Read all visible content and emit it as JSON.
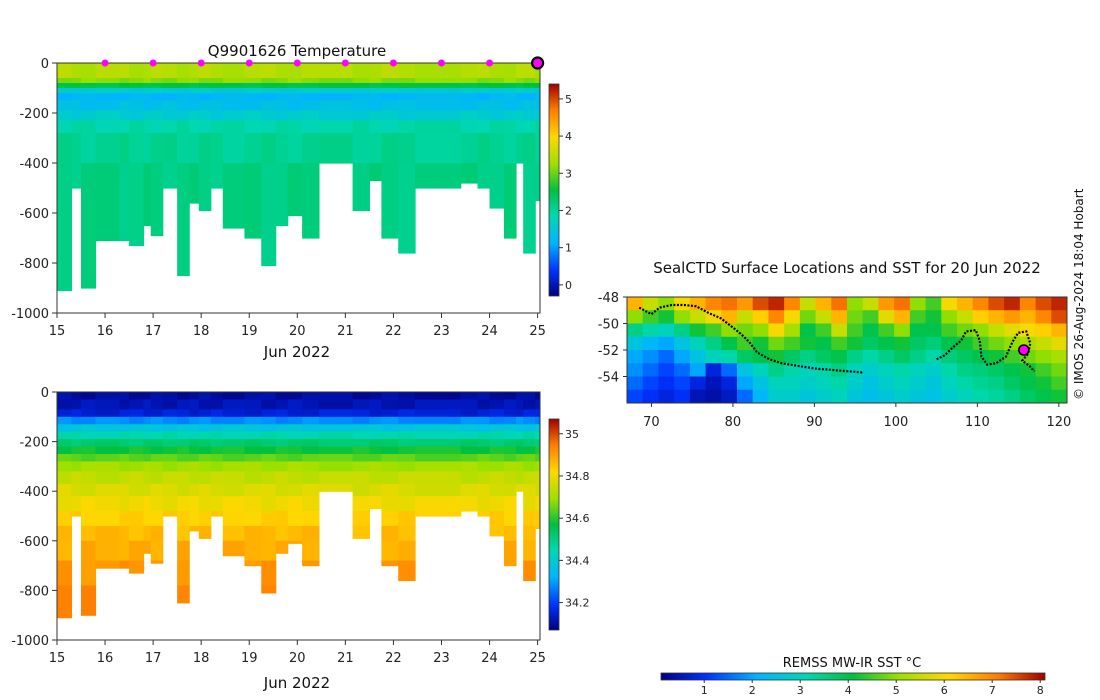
{
  "chart_data": [
    {
      "type": "heatmap",
      "title": "Q9901626  Temperature",
      "variable": "temperature",
      "xlabel": "Jun 2022",
      "x_ticks": [
        15,
        16,
        17,
        18,
        19,
        20,
        21,
        22,
        23,
        24,
        25
      ],
      "xlim": [
        15,
        25.05
      ],
      "ylim": [
        -1000,
        0
      ],
      "y_ticks": [
        0,
        -200,
        -400,
        -600,
        -800,
        -1000
      ],
      "colorbar": {
        "ticks": [
          0,
          1,
          2,
          3,
          4,
          5
        ],
        "range": [
          -0.3,
          5.4
        ]
      },
      "surface_markers_x": [
        16,
        17,
        18,
        19,
        20,
        21,
        22,
        23,
        24
      ],
      "current_marker_x": 25,
      "profiles": [
        {
          "x": 15.0,
          "max_depth": 910
        },
        {
          "x": 15.3,
          "max_depth": 500
        },
        {
          "x": 15.5,
          "max_depth": 900
        },
        {
          "x": 15.8,
          "max_depth": 710
        },
        {
          "x": 16.3,
          "max_depth": 710
        },
        {
          "x": 16.5,
          "max_depth": 730
        },
        {
          "x": 16.8,
          "max_depth": 650
        },
        {
          "x": 16.95,
          "max_depth": 690
        },
        {
          "x": 17.2,
          "max_depth": 500
        },
        {
          "x": 17.5,
          "max_depth": 850
        },
        {
          "x": 17.75,
          "max_depth": 560
        },
        {
          "x": 17.95,
          "max_depth": 590
        },
        {
          "x": 18.2,
          "max_depth": 500
        },
        {
          "x": 18.45,
          "max_depth": 660
        },
        {
          "x": 18.9,
          "max_depth": 700
        },
        {
          "x": 19.25,
          "max_depth": 810
        },
        {
          "x": 19.55,
          "max_depth": 650
        },
        {
          "x": 19.8,
          "max_depth": 610
        },
        {
          "x": 20.1,
          "max_depth": 700
        },
        {
          "x": 20.45,
          "max_depth": 400
        },
        {
          "x": 21.15,
          "max_depth": 590
        },
        {
          "x": 21.5,
          "max_depth": 470
        },
        {
          "x": 21.75,
          "max_depth": 700
        },
        {
          "x": 22.1,
          "max_depth": 760
        },
        {
          "x": 22.45,
          "max_depth": 500
        },
        {
          "x": 23.4,
          "max_depth": 480
        },
        {
          "x": 23.75,
          "max_depth": 500
        },
        {
          "x": 24.0,
          "max_depth": 580
        },
        {
          "x": 24.3,
          "max_depth": 700
        },
        {
          "x": 24.55,
          "max_depth": 400
        },
        {
          "x": 24.7,
          "max_depth": 760
        },
        {
          "x": 24.95,
          "max_depth": 550
        }
      ],
      "depth_profile": [
        {
          "to_depth": 60,
          "value": 3.4
        },
        {
          "to_depth": 80,
          "value": 3.15
        },
        {
          "to_depth": 100,
          "value": 2.5
        },
        {
          "to_depth": 120,
          "value": 1.6
        },
        {
          "to_depth": 150,
          "value": 1.2
        },
        {
          "to_depth": 190,
          "value": 1.35
        },
        {
          "to_depth": 230,
          "value": 1.6
        },
        {
          "to_depth": 280,
          "value": 1.9
        },
        {
          "to_depth": 400,
          "value": 2.05
        },
        {
          "to_depth": 1000,
          "value": 2.15
        }
      ]
    },
    {
      "type": "heatmap",
      "variable": "salinity",
      "xlabel": "Jun 2022",
      "x_ticks": [
        15,
        16,
        17,
        18,
        19,
        20,
        21,
        22,
        23,
        24,
        25
      ],
      "xlim": [
        15,
        25.05
      ],
      "ylim": [
        -1000,
        0
      ],
      "y_ticks": [
        0,
        -200,
        -400,
        -600,
        -800,
        -1000
      ],
      "colorbar": {
        "ticks": [
          34.2,
          34.4,
          34.6,
          34.8,
          35
        ],
        "ticklabels": [
          "34.2",
          "34.4",
          "34.6",
          "34.8",
          "35"
        ],
        "range": [
          34.07,
          35.07
        ]
      },
      "profiles": [
        {
          "x": 15.0,
          "max_depth": 910
        },
        {
          "x": 15.3,
          "max_depth": 500
        },
        {
          "x": 15.5,
          "max_depth": 900
        },
        {
          "x": 15.8,
          "max_depth": 710
        },
        {
          "x": 16.3,
          "max_depth": 710
        },
        {
          "x": 16.5,
          "max_depth": 730
        },
        {
          "x": 16.8,
          "max_depth": 650
        },
        {
          "x": 16.95,
          "max_depth": 690
        },
        {
          "x": 17.2,
          "max_depth": 500
        },
        {
          "x": 17.5,
          "max_depth": 850
        },
        {
          "x": 17.75,
          "max_depth": 560
        },
        {
          "x": 17.95,
          "max_depth": 590
        },
        {
          "x": 18.2,
          "max_depth": 500
        },
        {
          "x": 18.45,
          "max_depth": 660
        },
        {
          "x": 18.9,
          "max_depth": 700
        },
        {
          "x": 19.25,
          "max_depth": 810
        },
        {
          "x": 19.55,
          "max_depth": 650
        },
        {
          "x": 19.8,
          "max_depth": 610
        },
        {
          "x": 20.1,
          "max_depth": 700
        },
        {
          "x": 20.45,
          "max_depth": 400
        },
        {
          "x": 21.15,
          "max_depth": 590
        },
        {
          "x": 21.5,
          "max_depth": 470
        },
        {
          "x": 21.75,
          "max_depth": 700
        },
        {
          "x": 22.1,
          "max_depth": 760
        },
        {
          "x": 22.45,
          "max_depth": 500
        },
        {
          "x": 23.4,
          "max_depth": 480
        },
        {
          "x": 23.75,
          "max_depth": 500
        },
        {
          "x": 24.0,
          "max_depth": 580
        },
        {
          "x": 24.3,
          "max_depth": 700
        },
        {
          "x": 24.55,
          "max_depth": 400
        },
        {
          "x": 24.7,
          "max_depth": 760
        },
        {
          "x": 24.95,
          "max_depth": 550
        }
      ],
      "depth_profile": [
        {
          "to_depth": 30,
          "value": 34.1
        },
        {
          "to_depth": 70,
          "value": 34.12
        },
        {
          "to_depth": 100,
          "value": 34.15
        },
        {
          "to_depth": 130,
          "value": 34.28
        },
        {
          "to_depth": 160,
          "value": 34.38
        },
        {
          "to_depth": 190,
          "value": 34.45
        },
        {
          "to_depth": 220,
          "value": 34.52
        },
        {
          "to_depth": 250,
          "value": 34.58
        },
        {
          "to_depth": 280,
          "value": 34.64
        },
        {
          "to_depth": 320,
          "value": 34.7
        },
        {
          "to_depth": 370,
          "value": 34.74
        },
        {
          "to_depth": 420,
          "value": 34.77
        },
        {
          "to_depth": 480,
          "value": 34.8
        },
        {
          "to_depth": 540,
          "value": 34.83
        },
        {
          "to_depth": 600,
          "value": 34.86
        },
        {
          "to_depth": 680,
          "value": 34.88
        },
        {
          "to_depth": 780,
          "value": 34.91
        },
        {
          "to_depth": 1000,
          "value": 34.94
        }
      ]
    },
    {
      "type": "heatmap",
      "title": "SealCTD Surface Locations and SST for 20 Jun 2022",
      "xlim": [
        67,
        121
      ],
      "ylim": [
        -56,
        -48
      ],
      "x_ticks": [
        70,
        80,
        90,
        100,
        110,
        120
      ],
      "y_ticks": [
        -48,
        -50,
        -52,
        -54
      ],
      "colorbar": {
        "label": "REMSS MW-IR SST °C",
        "ticks": [
          1,
          2,
          3,
          4,
          5,
          6,
          7,
          8
        ],
        "range": [
          0.1,
          8.1
        ]
      },
      "track": [
        [
          68.5,
          -48.8
        ],
        [
          70,
          -49.3
        ],
        [
          71,
          -48.8
        ],
        [
          72.5,
          -48.6
        ],
        [
          74,
          -48.6
        ],
        [
          75.5,
          -48.7
        ],
        [
          77,
          -49.2
        ],
        [
          78.5,
          -49.6
        ],
        [
          80,
          -50.3
        ],
        [
          81,
          -50.8
        ],
        [
          82,
          -51.4
        ],
        [
          83,
          -52.2
        ],
        [
          84.5,
          -52.7
        ],
        [
          86,
          -53
        ],
        [
          88,
          -53.2
        ],
        [
          90,
          -53.4
        ],
        [
          92,
          -53.5
        ],
        [
          94,
          -53.6
        ],
        [
          96,
          -53.7
        ]
      ],
      "track2": [
        [
          105,
          -52.7
        ],
        [
          106,
          -52.4
        ],
        [
          107,
          -51.8
        ],
        [
          108,
          -51.3
        ],
        [
          108.6,
          -50.6
        ],
        [
          109.8,
          -50.5
        ],
        [
          110.3,
          -51.3
        ],
        [
          110.5,
          -52.5
        ],
        [
          111.2,
          -53.1
        ],
        [
          112.3,
          -53
        ],
        [
          113.5,
          -52.5
        ],
        [
          114.3,
          -51.4
        ],
        [
          115,
          -50.7
        ],
        [
          116,
          -50.6
        ],
        [
          116.5,
          -51.5
        ],
        [
          116.2,
          -52.3
        ],
        [
          115.5,
          -52.8
        ],
        [
          116.4,
          -53.2
        ],
        [
          117,
          -53.6
        ]
      ],
      "current_location": [
        115.7,
        -52.0
      ],
      "sst_field": [
        [
          6.5,
          5.5,
          5.0,
          6.0,
          6.5,
          7.0,
          7.2,
          6.8,
          7.5,
          7.8,
          7.0,
          5.5,
          6.5,
          7.2,
          5.0,
          5.5,
          6.8,
          7.2,
          5.0,
          4.5,
          6.0,
          6.5,
          7.0,
          7.5,
          7.8,
          7.0,
          7.5,
          7.8
        ],
        [
          5.0,
          4.5,
          4.2,
          5.0,
          5.5,
          6.0,
          6.5,
          5.5,
          6.2,
          7.0,
          6.0,
          4.8,
          5.5,
          6.5,
          4.8,
          4.5,
          5.8,
          6.5,
          4.5,
          4.2,
          5.0,
          5.5,
          6.2,
          6.5,
          6.8,
          6.5,
          7.0,
          7.5
        ],
        [
          3.5,
          3.2,
          3.0,
          3.5,
          4.2,
          4.5,
          5.0,
          4.8,
          5.0,
          6.0,
          5.2,
          4.0,
          4.5,
          5.5,
          4.5,
          4.0,
          4.5,
          5.0,
          4.0,
          4.0,
          4.5,
          4.8,
          5.0,
          5.5,
          5.8,
          6.0,
          6.2,
          6.5
        ],
        [
          2.5,
          2.2,
          2.0,
          2.5,
          3.0,
          3.5,
          4.0,
          4.5,
          4.2,
          4.8,
          4.5,
          4.2,
          4.0,
          4.5,
          4.2,
          3.8,
          4.0,
          4.2,
          3.8,
          3.6,
          4.0,
          4.2,
          4.5,
          4.8,
          5.0,
          5.2,
          5.5,
          5.8
        ],
        [
          2.0,
          1.8,
          1.5,
          2.0,
          2.5,
          3.0,
          3.2,
          3.8,
          4.0,
          4.2,
          3.8,
          3.5,
          3.8,
          4.0,
          3.5,
          3.2,
          3.5,
          3.8,
          3.5,
          3.2,
          3.6,
          3.8,
          4.0,
          4.2,
          4.5,
          4.8,
          5.0,
          5.2
        ],
        [
          1.8,
          1.5,
          1.2,
          1.5,
          2.0,
          0.8,
          1.5,
          2.5,
          3.0,
          3.5,
          3.2,
          3.0,
          3.2,
          3.5,
          3.0,
          2.8,
          3.0,
          3.2,
          3.0,
          2.8,
          3.2,
          3.5,
          3.6,
          3.8,
          4.0,
          4.2,
          4.5,
          4.8
        ],
        [
          1.5,
          1.2,
          1.0,
          1.2,
          0.8,
          0.5,
          0.8,
          2.0,
          2.5,
          3.0,
          3.0,
          2.8,
          3.0,
          3.2,
          2.8,
          2.5,
          2.8,
          3.0,
          2.8,
          2.6,
          3.0,
          3.2,
          3.4,
          3.5,
          3.8,
          4.0,
          4.2,
          4.5
        ],
        [
          1.2,
          1.0,
          0.8,
          1.0,
          0.5,
          0.4,
          0.6,
          1.5,
          2.2,
          2.8,
          2.8,
          2.6,
          2.8,
          3.0,
          2.6,
          2.4,
          2.6,
          2.8,
          2.6,
          2.5,
          2.8,
          3.0,
          3.2,
          3.3,
          3.5,
          3.8,
          4.0,
          4.2
        ]
      ]
    }
  ],
  "credit": "© IMOS 26-Aug-2024 18:04 Hobart"
}
